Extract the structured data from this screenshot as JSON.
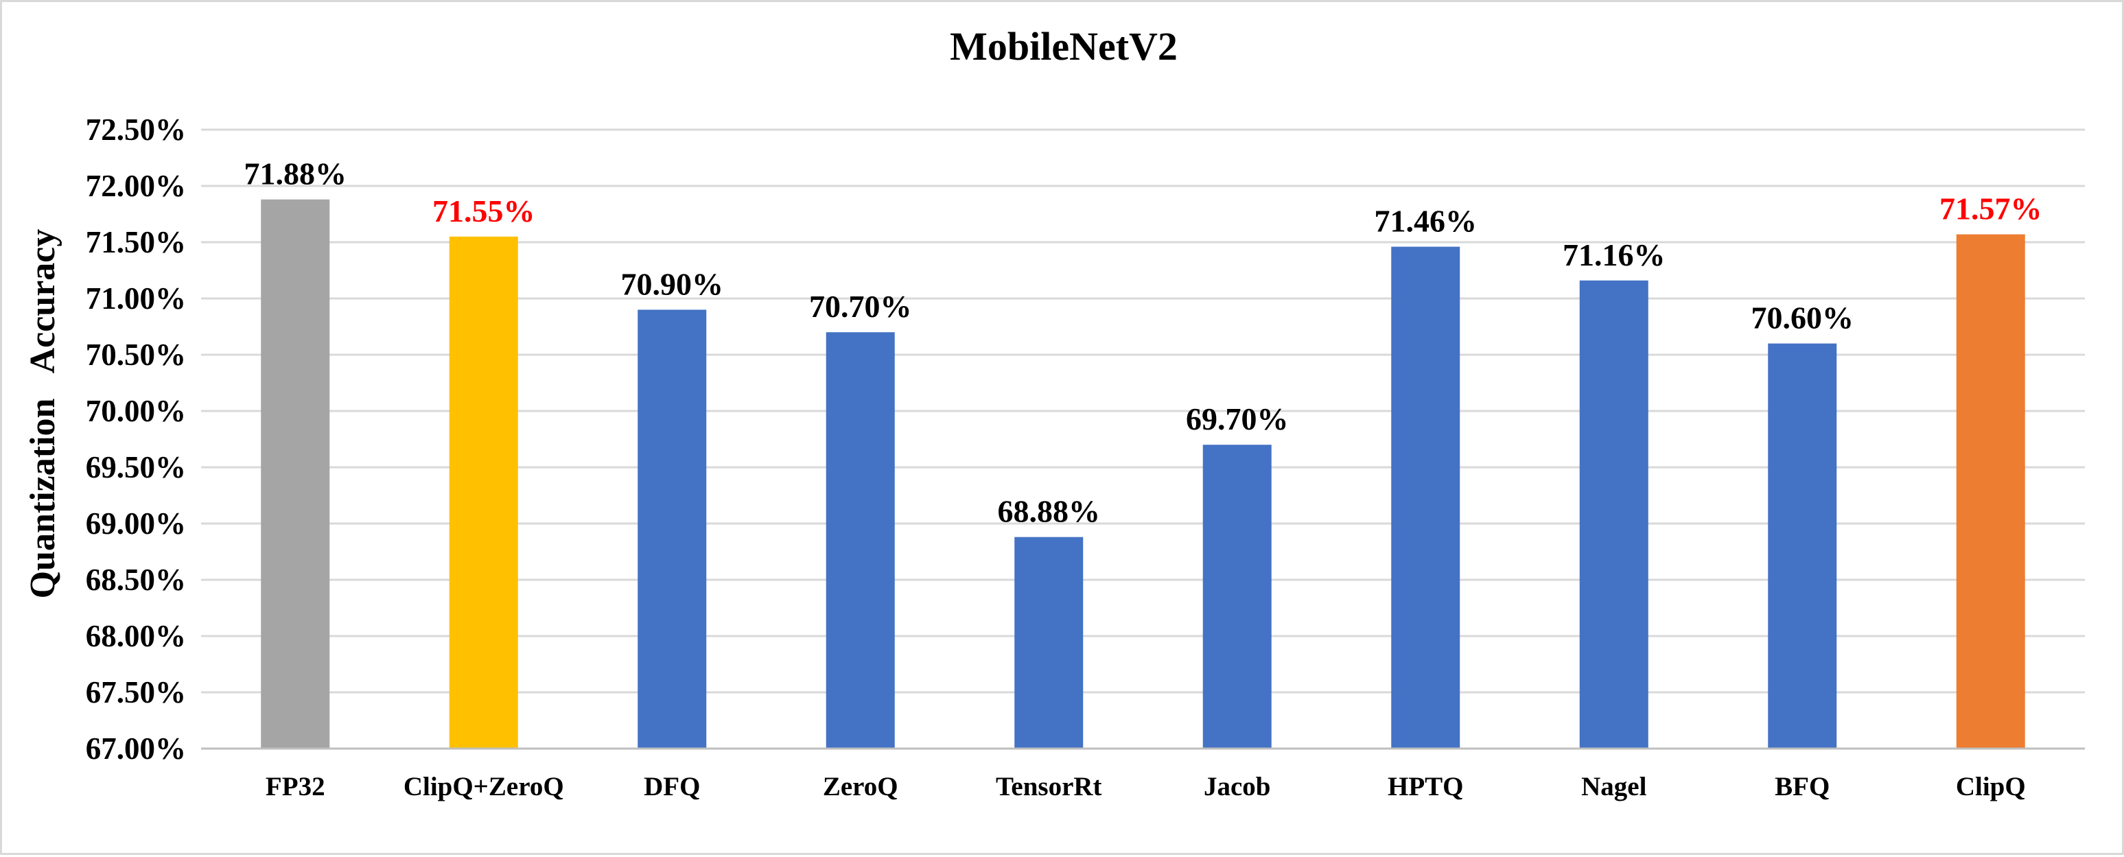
{
  "chart_data": {
    "type": "bar",
    "title": "MobileNetV2",
    "xlabel": "",
    "ylabel": "Quantization   Accuracy",
    "ylim": [
      67.0,
      72.5
    ],
    "ytick_step": 0.5,
    "ytick_labels": [
      "67.00%",
      "67.50%",
      "68.00%",
      "68.50%",
      "69.00%",
      "69.50%",
      "70.00%",
      "70.50%",
      "71.00%",
      "71.50%",
      "72.00%",
      "72.50%"
    ],
    "grid": true,
    "legend": "none",
    "categories": [
      "FP32",
      "ClipQ+ZeroQ",
      "DFQ",
      "ZeroQ",
      "TensorRt",
      "Jacob",
      "HPTQ",
      "Nagel",
      "BFQ",
      "ClipQ"
    ],
    "values": [
      71.88,
      71.55,
      70.9,
      70.7,
      68.88,
      69.7,
      71.46,
      71.16,
      70.6,
      71.57
    ],
    "data_labels": [
      "71.88%",
      "71.55%",
      "70.90%",
      "70.70%",
      "68.88%",
      "69.70%",
      "71.46%",
      "71.16%",
      "70.60%",
      "71.57%"
    ],
    "bar_colors": [
      "#a5a5a5",
      "#ffc000",
      "#4472c4",
      "#4472c4",
      "#4472c4",
      "#4472c4",
      "#4472c4",
      "#4472c4",
      "#4472c4",
      "#ed7d31"
    ],
    "label_colors": [
      "#000000",
      "#ff0000",
      "#000000",
      "#000000",
      "#000000",
      "#000000",
      "#000000",
      "#000000",
      "#000000",
      "#ff0000"
    ]
  }
}
